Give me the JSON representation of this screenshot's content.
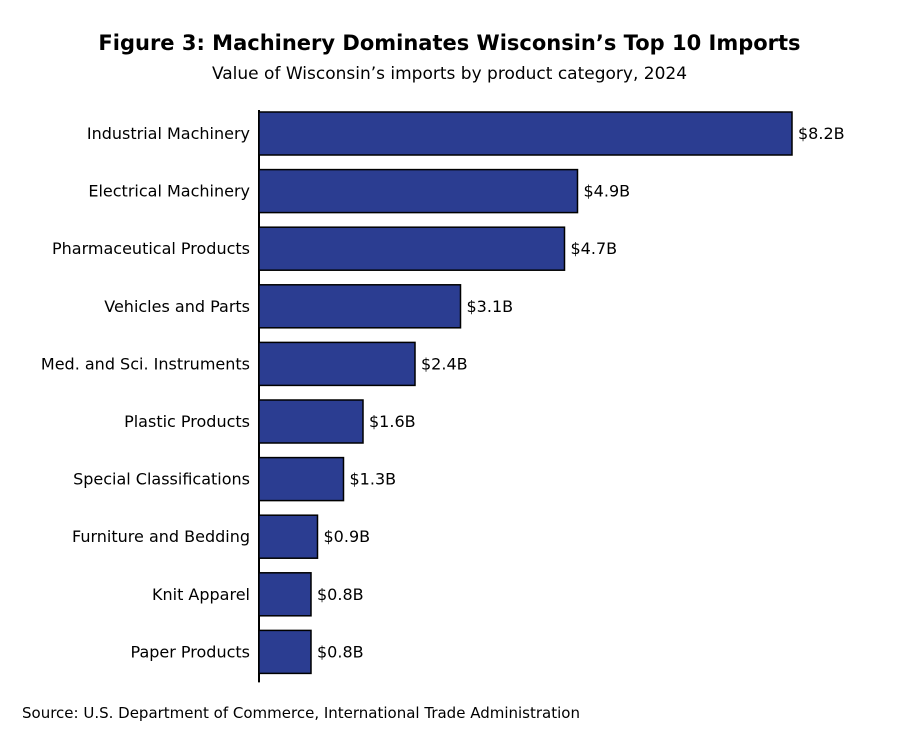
{
  "title": "Figure 3: Machinery Dominates Wisconsin’s Top 10 Imports",
  "subtitle": "Value of Wisconsin’s imports by product category, 2024",
  "source": "Source: U.S. Department of Commerce, International Trade Administration",
  "chart_data": {
    "type": "bar",
    "orientation": "horizontal",
    "categories": [
      "Industrial Machinery",
      "Electrical Machinery",
      "Pharmaceutical Products",
      "Vehicles and Parts",
      "Med. and Sci. Instruments",
      "Plastic Products",
      "Special Classifications",
      "Furniture and Bedding",
      "Knit Apparel",
      "Paper Products"
    ],
    "values": [
      8.2,
      4.9,
      4.7,
      3.1,
      2.4,
      1.6,
      1.3,
      0.9,
      0.8,
      0.8
    ],
    "data_labels": [
      "$8.2B",
      "$4.9B",
      "$4.7B",
      "$3.1B",
      "$2.4B",
      "$1.6B",
      "$1.3B",
      "$0.9B",
      "$0.8B",
      "$0.8B"
    ],
    "xlim": [
      0,
      8.2
    ],
    "grid": false,
    "bar_color": "#2b3d91"
  }
}
